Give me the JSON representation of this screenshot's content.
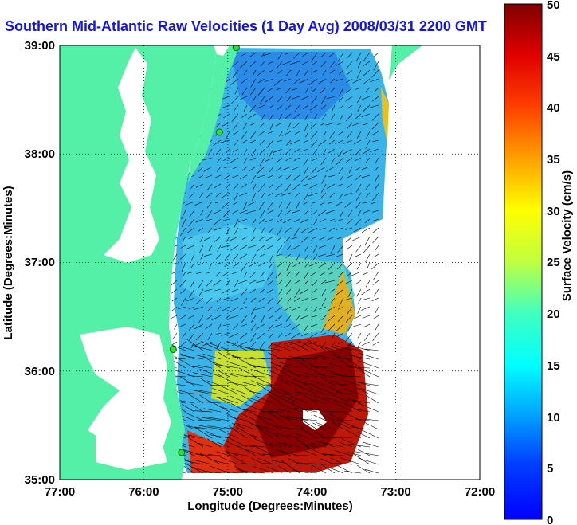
{
  "title": "Southern Mid-Atlantic Raw Velocities (1 Day Avg) 2008/03/31 2200 GMT",
  "map": {
    "xlabel": "Longitude (Degrees:Minutes)",
    "ylabel": "Latitude (Degrees:Minutes)",
    "x_ticks": [
      "77:00",
      "76:00",
      "75:00",
      "74:00",
      "73:00",
      "72:00"
    ],
    "y_ticks": [
      "39:00",
      "38:00",
      "37:00",
      "36:00",
      "35:00"
    ],
    "land_color": "#55f0a8",
    "water_color": "#ffffff",
    "grid": "dotted"
  },
  "colorbar": {
    "label": "Surface Velocity (cm/s)",
    "min": 0,
    "max": 50,
    "ticks": [
      "50",
      "45",
      "40",
      "35",
      "30",
      "25",
      "20",
      "15",
      "10",
      "5",
      "0"
    ],
    "colormap": "jet"
  },
  "stations": [
    {
      "lon": -74.9,
      "lat": 38.98
    },
    {
      "lon": -75.1,
      "lat": 38.2
    },
    {
      "lon": -75.65,
      "lat": 36.2
    },
    {
      "lon": -75.55,
      "lat": 35.25
    }
  ]
}
